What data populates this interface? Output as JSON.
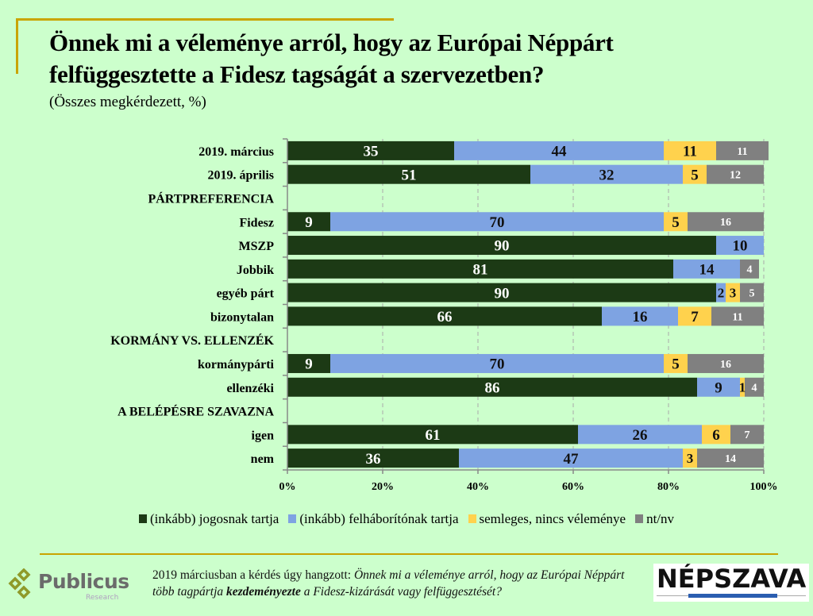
{
  "header": {
    "title_line1": "Önnek mi a véleménye arról, hogy az Európai Néppárt",
    "title_line2": "felfüggesztette a Fidesz tagságát a szervezetben?",
    "subtitle": "(Összes megkérdezett, %)"
  },
  "colors": {
    "jogos": "#1c3a15",
    "felhaborito": "#7ea3e2",
    "semleges": "#ffd24d",
    "ntnv": "#808080",
    "background": "#ccffcc",
    "accent_rule": "#c9a400"
  },
  "chart_data": {
    "type": "bar",
    "orientation": "horizontal",
    "stacked": true,
    "percent_stacked": true,
    "title": "Önnek mi a véleménye arról, hogy az Európai Néppárt felfüggesztette a Fidesz tagságát a szervezetben?",
    "subtitle": "(Összes megkérdezett, %)",
    "xlabel": "",
    "ylabel": "",
    "xlim": [
      0,
      100
    ],
    "x_ticks": [
      "0%",
      "20%",
      "40%",
      "60%",
      "80%",
      "100%"
    ],
    "grid": "vertical dashed",
    "legend_position": "bottom",
    "categories": [
      {
        "label": "2019. március",
        "header": false
      },
      {
        "label": "2019. április",
        "header": false
      },
      {
        "label": "PÁRTPREFERENCIA",
        "header": true
      },
      {
        "label": "Fidesz",
        "header": false
      },
      {
        "label": "MSZP",
        "header": false
      },
      {
        "label": "Jobbik",
        "header": false
      },
      {
        "label": "egyéb párt",
        "header": false
      },
      {
        "label": "bizonytalan",
        "header": false
      },
      {
        "label": "KORMÁNY VS. ELLENZÉK",
        "header": true
      },
      {
        "label": "kormánypárti",
        "header": false
      },
      {
        "label": "ellenzéki",
        "header": false
      },
      {
        "label": "A BELÉPÉSRE SZAVAZNA",
        "header": true
      },
      {
        "label": "igen",
        "header": false
      },
      {
        "label": "nem",
        "header": false
      }
    ],
    "series": [
      {
        "name": "(inkább) jogosnak tartja",
        "key": "jogos",
        "values": [
          35,
          51,
          null,
          9,
          90,
          81,
          90,
          66,
          null,
          9,
          86,
          null,
          61,
          36
        ]
      },
      {
        "name": "(inkább) felháborítónak tartja",
        "key": "felhaborito",
        "values": [
          44,
          32,
          null,
          70,
          10,
          14,
          2,
          16,
          null,
          70,
          9,
          null,
          26,
          47
        ]
      },
      {
        "name": "semleges, nincs véleménye",
        "key": "semleges",
        "values": [
          11,
          5,
          null,
          5,
          0,
          0,
          3,
          7,
          null,
          5,
          1,
          null,
          6,
          3
        ]
      },
      {
        "name": "nt/nv",
        "key": "ntnv",
        "values": [
          11,
          12,
          null,
          16,
          0,
          4,
          5,
          11,
          null,
          16,
          4,
          null,
          7,
          14
        ]
      }
    ]
  },
  "legend": [
    {
      "label": "(inkább) jogosnak tartja",
      "key": "jogos"
    },
    {
      "label": "(inkább) felháborítónak tartja",
      "key": "felhaborito"
    },
    {
      "label": "semleges, nincs véleménye",
      "key": "semleges"
    },
    {
      "label": "nt/nv",
      "key": "ntnv"
    }
  ],
  "footer": {
    "note_plain": "2019 márciusban a kérdés úgy hangzott: ",
    "note_italic1": "Önnek mi a véleménye arról, hogy az Európai Néppárt több tagpártja ",
    "note_bold": "kezdeményezte",
    "note_italic2": " a Fidesz-kizárását vagy felfüggesztését?",
    "logo_left": "Publicus",
    "logo_left_sub": "Research",
    "logo_right": "NÉPSZAVA"
  }
}
